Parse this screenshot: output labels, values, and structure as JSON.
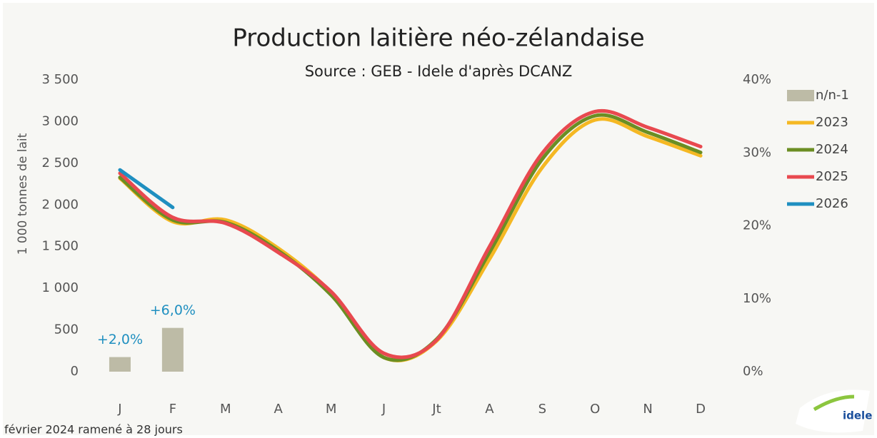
{
  "chart_data": {
    "type": "bar-line",
    "title": "Production laitière néo-zélandaise",
    "subtitle": "Source : GEB - Idele d'après DCANZ",
    "y_label": "1 000 tonnes de lait",
    "footnote": "février 2024 ramené à 28 jours",
    "logo": "idele",
    "categories": [
      "J",
      "F",
      "M",
      "A",
      "M",
      "J",
      "Jt",
      "A",
      "S",
      "O",
      "N",
      "D"
    ],
    "ylim": [
      0,
      3500
    ],
    "yticks": [
      0,
      500,
      {
        "value": 1000,
        "label": "1 000"
      },
      {
        "value": 1500,
        "label": "1 500"
      },
      {
        "value": 2000,
        "label": "2 000"
      },
      {
        "value": 2500,
        "label": "2 500"
      },
      {
        "value": 3000,
        "label": "3 000"
      },
      {
        "value": 3500,
        "label": "3 500"
      }
    ],
    "y2lim": [
      0,
      40
    ],
    "y2ticks": [
      {
        "value": 0,
        "label": "0%"
      },
      {
        "value": 10,
        "label": "10%"
      },
      {
        "value": 20,
        "label": "20%"
      },
      {
        "value": 30,
        "label": "30%"
      },
      {
        "value": 40,
        "label": "40%"
      }
    ],
    "legend": "right",
    "series": [
      {
        "name": "n/n-1",
        "type": "bar",
        "axis": "y2",
        "color": "#bdbba6",
        "values": [
          2.0,
          6.0,
          null,
          null,
          null,
          null,
          null,
          null,
          null,
          null,
          null,
          null
        ],
        "value_labels": [
          "+2,0%",
          "+6,0%",
          null,
          null,
          null,
          null,
          null,
          null,
          null,
          null,
          null,
          null
        ],
        "label_color": "#1f8fc0"
      },
      {
        "name": "2023",
        "type": "line",
        "color": "#f5b823",
        "values": [
          2320,
          1800,
          1820,
          1480,
          950,
          170,
          370,
          1350,
          2450,
          3020,
          2820,
          2590
        ]
      },
      {
        "name": "2024",
        "type": "line",
        "color": "#6b8e23",
        "values": [
          2330,
          1820,
          1790,
          1450,
          920,
          170,
          390,
          1430,
          2550,
          3070,
          2870,
          2630
        ]
      },
      {
        "name": "2025",
        "type": "line",
        "color": "#e8494f",
        "values": [
          2380,
          1850,
          1780,
          1430,
          960,
          220,
          380,
          1500,
          2620,
          3120,
          2930,
          2700
        ]
      },
      {
        "name": "2026",
        "type": "line",
        "color": "#1f8fc0",
        "values": [
          2420,
          1970,
          null,
          null,
          null,
          null,
          null,
          null,
          null,
          null,
          null,
          null
        ]
      }
    ]
  }
}
